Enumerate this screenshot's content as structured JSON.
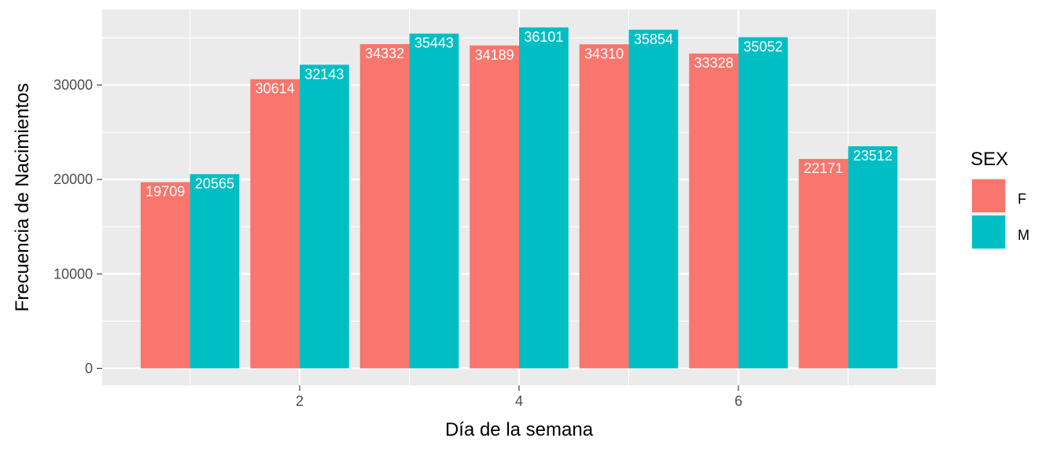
{
  "chart_data": {
    "type": "bar",
    "xlabel": "Día de la semana",
    "ylabel": "Frecuencia de Nacimientos",
    "x": [
      1,
      2,
      3,
      4,
      5,
      6,
      7
    ],
    "xlim": [
      0.2,
      7.8
    ],
    "ylim": [
      -1800,
      38000
    ],
    "x_ticks": [
      2,
      4,
      6
    ],
    "x_tick_labels": [
      "2",
      "4",
      "6"
    ],
    "y_ticks": [
      0,
      10000,
      20000,
      30000
    ],
    "y_tick_labels": [
      "0",
      "10000",
      "20000",
      "30000"
    ],
    "grid": true,
    "legend": {
      "title": "SEX",
      "position": "right"
    },
    "series": [
      {
        "name": "F",
        "color": "#F8766D",
        "values": [
          19709,
          30614,
          34332,
          34189,
          34310,
          33328,
          22171
        ]
      },
      {
        "name": "M",
        "color": "#00BFC4",
        "values": [
          20565,
          32143,
          35443,
          36101,
          35854,
          35052,
          23512
        ]
      }
    ]
  }
}
